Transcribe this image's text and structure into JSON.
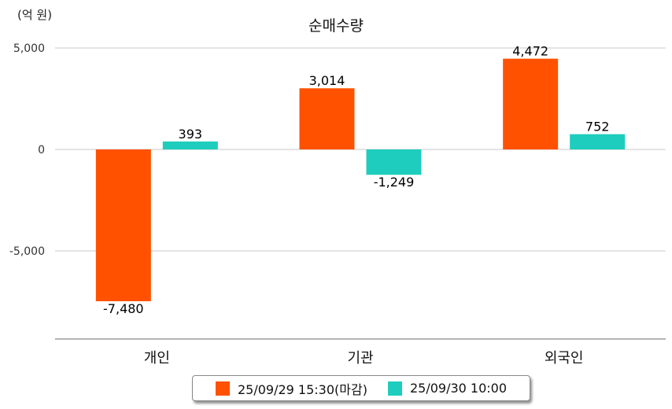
{
  "chart_data": {
    "type": "bar",
    "title": "순매수량",
    "unit": "(억 원)",
    "categories": [
      "개인",
      "기관",
      "외국인"
    ],
    "series": [
      {
        "name": "25/09/29 15:30(마감)",
        "color": "#FF5100",
        "values": [
          -7480,
          3014,
          4472
        ],
        "labels": [
          "-7,480",
          "3,014",
          "4,472"
        ]
      },
      {
        "name": "25/09/30 10:00",
        "color": "#1ECDBE",
        "values": [
          393,
          -1249,
          752
        ],
        "labels": [
          "393",
          "-1,249",
          "752"
        ]
      }
    ],
    "y_ticks": [
      5000,
      0,
      -5000
    ],
    "y_tick_labels": [
      "5,000",
      "0",
      "-5,000"
    ],
    "ylim": [
      -9300,
      5000
    ],
    "grid": true,
    "legend_position": "bottom"
  }
}
